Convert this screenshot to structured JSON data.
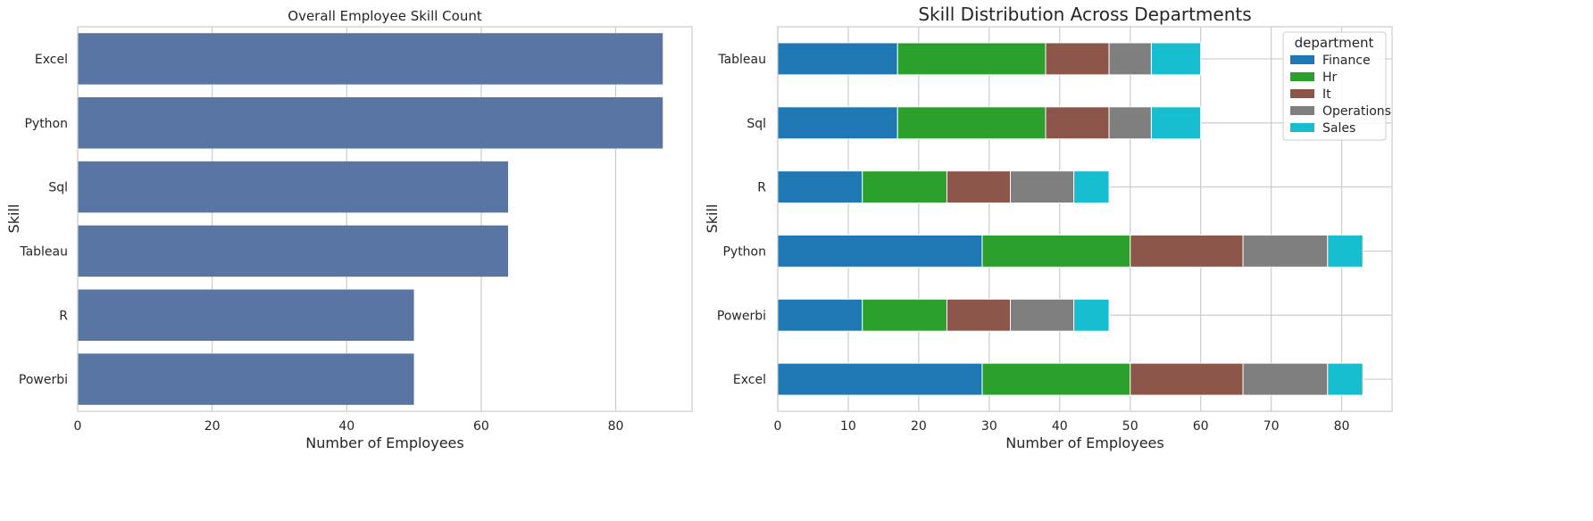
{
  "chart_data": [
    {
      "type": "bar",
      "orientation": "horizontal",
      "title": "Overall Employee Skill Count",
      "xlabel": "Number of Employees",
      "ylabel": "Skill",
      "categories": [
        "Excel",
        "Python",
        "Sql",
        "Tableau",
        "R",
        "Powerbi"
      ],
      "values": [
        87,
        87,
        64,
        64,
        50,
        50
      ],
      "xlim": [
        0,
        91.35
      ],
      "xticks": [
        0,
        20,
        40,
        60,
        80
      ],
      "grid": true,
      "color": "#5875a4"
    },
    {
      "type": "bar",
      "orientation": "horizontal",
      "stacked": true,
      "title": "Skill Distribution Across Departments",
      "xlabel": "Number of Employees",
      "ylabel": "Skill",
      "categories": [
        "Tableau",
        "Sql",
        "R",
        "Python",
        "Powerbi",
        "Excel"
      ],
      "series": [
        {
          "name": "Finance",
          "color": "#1f77b4",
          "values": [
            17,
            17,
            12,
            29,
            12,
            29
          ]
        },
        {
          "name": "Hr",
          "color": "#2ca02c",
          "values": [
            21,
            21,
            12,
            21,
            12,
            21
          ]
        },
        {
          "name": "It",
          "color": "#8c564b",
          "values": [
            9,
            9,
            9,
            16,
            9,
            16
          ]
        },
        {
          "name": "Operations",
          "color": "#7f7f7f",
          "values": [
            6,
            6,
            9,
            12,
            9,
            12
          ]
        },
        {
          "name": "Sales",
          "color": "#17becf",
          "values": [
            7,
            7,
            5,
            5,
            5,
            5
          ]
        }
      ],
      "xlim": [
        0,
        87.15
      ],
      "xticks": [
        0,
        10,
        20,
        30,
        40,
        50,
        60,
        70,
        80
      ],
      "grid": true,
      "legend_title": "department",
      "legend_position": "top-right"
    }
  ]
}
